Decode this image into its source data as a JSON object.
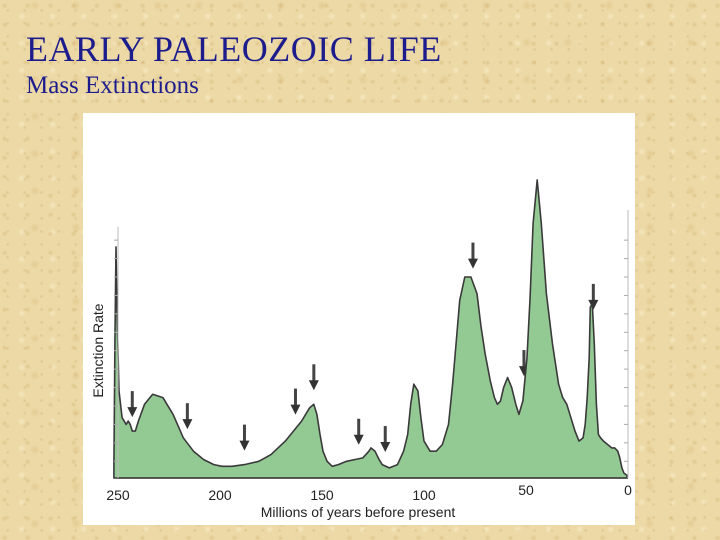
{
  "slide": {
    "title": "EARLY PALEOZOIC LIFE",
    "subtitle": "Mass Extinctions"
  },
  "colors": {
    "title_text": "#1c1c8c",
    "background": "#ecd9a6",
    "area_fill": "#93c993",
    "area_stroke": "#3a3a3a"
  },
  "chart_data": {
    "type": "area",
    "title": "",
    "xlabel": "Millions of years before present",
    "ylabel": "Extinction Rate",
    "xlim": [
      250,
      0
    ],
    "ylim": [
      0,
      100
    ],
    "x_ticks": [
      250,
      200,
      150,
      100,
      50,
      0
    ],
    "x_tick_labels": [
      "250",
      "200",
      "150",
      "100",
      "50",
      "0"
    ],
    "grid": false,
    "series": [
      {
        "name": "Extinction Rate",
        "x": [
          252,
          251.5,
          251,
          250.5,
          249.5,
          248,
          246,
          245,
          244,
          243,
          241.5,
          240,
          237,
          233,
          228,
          223,
          218,
          213,
          208,
          203,
          199,
          194,
          188,
          181,
          175,
          168,
          160,
          156,
          154,
          152.5,
          151,
          149.5,
          147.5,
          145,
          142,
          138,
          134,
          130,
          127,
          126,
          124,
          122,
          120.5,
          117,
          113,
          110,
          108,
          106.5,
          105,
          103,
          101.5,
          100,
          97,
          94,
          91,
          88,
          86,
          84,
          82.5,
          80,
          77,
          74,
          72,
          70,
          67.5,
          65.5,
          64,
          62.5,
          61,
          59,
          57,
          55,
          53.5,
          51.5,
          49.5,
          48,
          46.5,
          44.5,
          42.5,
          40,
          37,
          34,
          32,
          30,
          28,
          26,
          24,
          22,
          21,
          20,
          19,
          18.5,
          17.5,
          16.5,
          15.5,
          14.5,
          13.5,
          12,
          10,
          8,
          6.5,
          5,
          4,
          3,
          2,
          1,
          0.5
        ],
        "values": [
          3,
          40,
          69,
          50,
          26,
          18,
          16,
          17,
          16,
          14,
          14,
          17,
          22,
          25,
          24,
          19,
          12,
          8,
          5.5,
          4,
          3.5,
          3.5,
          4,
          5,
          7,
          11,
          17,
          21,
          22,
          19,
          13,
          8,
          5,
          3.5,
          4,
          5,
          5.5,
          6,
          8,
          9,
          8,
          5.5,
          4,
          3,
          4,
          8,
          13,
          22,
          28,
          26,
          18,
          11,
          8,
          8,
          10,
          16,
          28,
          42,
          53,
          60,
          60,
          55,
          45,
          37,
          29,
          24,
          22,
          23,
          27,
          30,
          27,
          22,
          19,
          23,
          36,
          54,
          76,
          89,
          76,
          55,
          40,
          28,
          24,
          22,
          18,
          14,
          11,
          12,
          16,
          24,
          36,
          51,
          52,
          40,
          22,
          13,
          12,
          11,
          10,
          9,
          9,
          8,
          6,
          3,
          1.5,
          1,
          0.8
        ]
      }
    ],
    "extinction_arrows_at": [
      243,
      216,
      188,
      163,
      154,
      132,
      119,
      76,
      51,
      17
    ]
  }
}
